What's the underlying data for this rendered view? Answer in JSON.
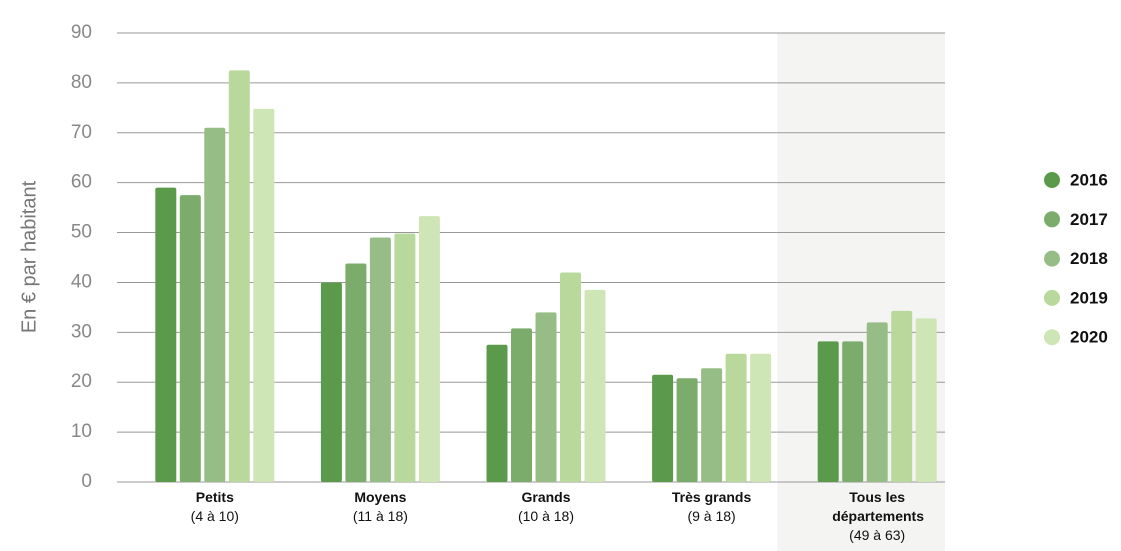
{
  "chart_data": {
    "type": "bar",
    "ylabel": "En € par habitant",
    "categories": [
      "Petits",
      "Moyens",
      "Grands",
      "Très grands",
      "Tous les départements"
    ],
    "category_sublabels": [
      "(4 à 10)",
      "(11 à 18)",
      "(10 à 18)",
      "(9 à 18)",
      "(49 à 63)"
    ],
    "series": [
      {
        "name": "2016",
        "color": "#5b9a4b",
        "values": [
          59,
          40,
          27.5,
          21.5,
          28.2
        ]
      },
      {
        "name": "2017",
        "color": "#7cac6c",
        "values": [
          57.5,
          43.8,
          30.8,
          20.8,
          28.2
        ]
      },
      {
        "name": "2018",
        "color": "#97bd87",
        "values": [
          71,
          49,
          34,
          22.8,
          32
        ]
      },
      {
        "name": "2019",
        "color": "#b9d99c",
        "values": [
          82.5,
          49.8,
          42,
          25.7,
          34.3
        ]
      },
      {
        "name": "2020",
        "color": "#cee5b6",
        "values": [
          74.8,
          53.3,
          38.5,
          25.7,
          32.8
        ]
      }
    ],
    "highlight_category": 4,
    "ylim": [
      0,
      90
    ],
    "yticks": [
      0,
      10,
      20,
      30,
      40,
      50,
      60,
      70,
      80,
      90
    ],
    "grid": true,
    "legend": "right"
  }
}
